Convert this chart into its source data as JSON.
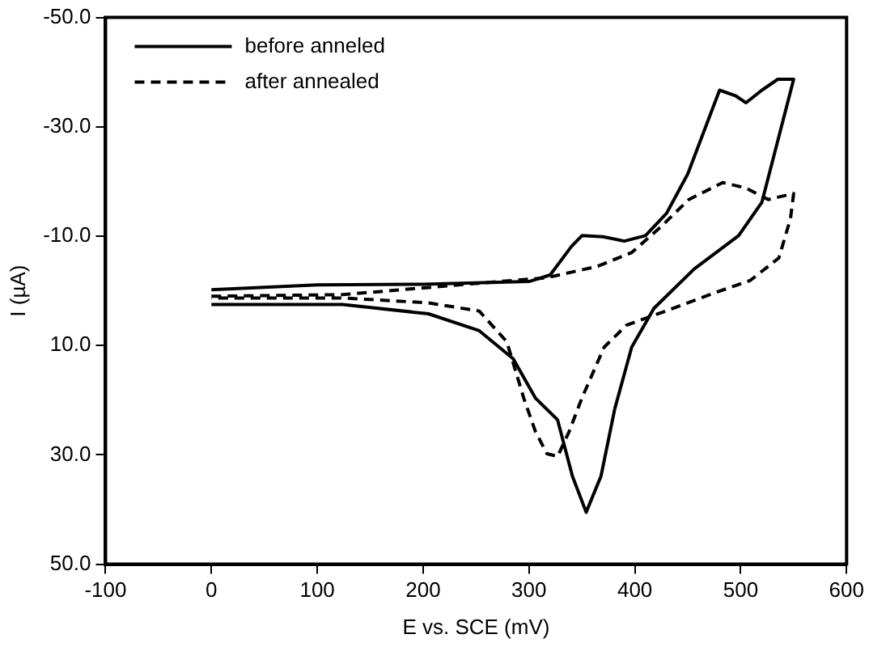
{
  "chart_data": {
    "type": "line",
    "xlabel": "E vs. SCE (mV)",
    "ylabel": "I (µA)",
    "xlim": [
      -100,
      600
    ],
    "xticks": [
      -100,
      0,
      100,
      200,
      300,
      400,
      500,
      600
    ],
    "ylim": [
      50,
      -50
    ],
    "yticks": [
      {
        "value": -50,
        "label": "-50.0"
      },
      {
        "value": -30,
        "label": "-30.0"
      },
      {
        "value": -10,
        "label": "-10.0"
      },
      {
        "value": 10,
        "label": "10.0"
      },
      {
        "value": 30,
        "label": "30.0"
      },
      {
        "value": 50,
        "label": "50.0"
      }
    ],
    "grid": false,
    "legend": "top left",
    "marker": "none",
    "series": [
      {
        "name": "before anneled",
        "color": "#000000",
        "line_style": "solid",
        "x": [
          0,
          100,
          200,
          300,
          320,
          340,
          350,
          370,
          390,
          410,
          430,
          450,
          470,
          480,
          495,
          505,
          520,
          535,
          550,
          520,
          498,
          456,
          418,
          397,
          381,
          368,
          354,
          341,
          327,
          306,
          285,
          253,
          205,
          124,
          0
        ],
        "values": [
          -0.2,
          -1.1,
          -1.2,
          -1.7,
          -2.9,
          -8.1,
          -10.1,
          -9.9,
          -9.1,
          -10.1,
          -14.2,
          -21.4,
          -31.6,
          -36.7,
          -35.7,
          -34.4,
          -36.7,
          -38.7,
          -38.7,
          -16.2,
          -10.1,
          -4.0,
          3.2,
          10.3,
          21.6,
          33.9,
          40.5,
          33.9,
          23.6,
          19.6,
          12.4,
          7.3,
          4.2,
          2.5,
          2.5
        ]
      },
      {
        "name": "after annealed",
        "color": "#000000",
        "line_style": "dashed",
        "x": [
          0,
          124,
          253,
          317,
          365,
          397,
          424,
          451,
          483,
          505,
          526,
          550,
          547,
          536,
          509,
          472,
          429,
          392,
          371,
          350,
          338,
          327,
          317,
          306,
          295,
          279,
          253,
          205,
          124,
          0
        ],
        "values": [
          1.0,
          0.7,
          -1.4,
          -2.4,
          -4.5,
          -7.0,
          -11.6,
          -16.7,
          -19.8,
          -18.8,
          -16.7,
          -17.8,
          -13.2,
          -6.0,
          -1.9,
          0.6,
          3.7,
          6.3,
          10.3,
          19.6,
          25.7,
          30.3,
          29.8,
          25.7,
          19.6,
          9.3,
          3.7,
          2.2,
          1.3,
          1.3
        ]
      }
    ]
  }
}
